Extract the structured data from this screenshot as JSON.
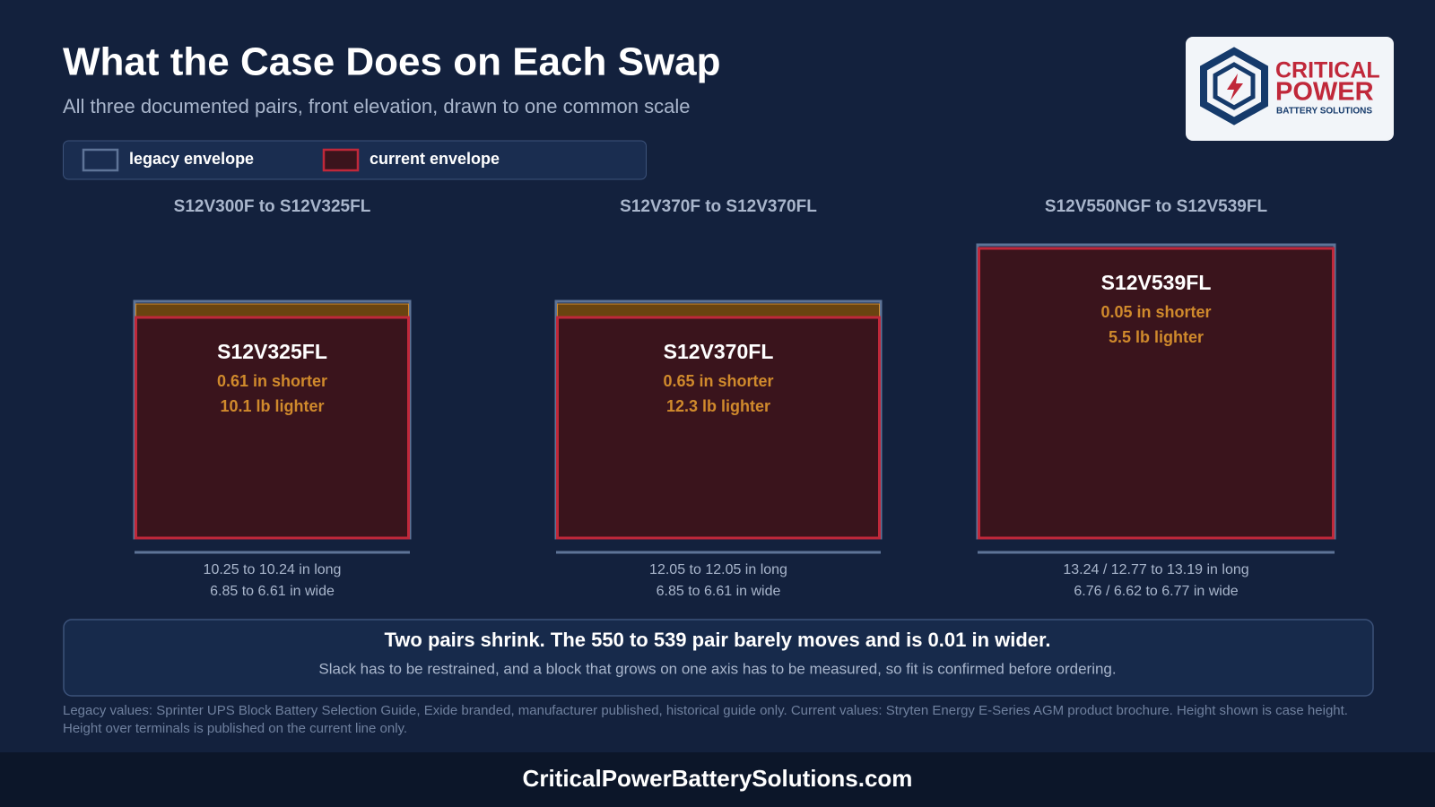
{
  "header": {
    "title": "What the Case Does on Each Swap",
    "subtitle": "All three documented pairs, front elevation, drawn to one common scale"
  },
  "legend": [
    {
      "label": "legacy envelope"
    },
    {
      "label": "current envelope"
    }
  ],
  "logo": {
    "line1": "CRITICAL",
    "line2": "POWER",
    "line3": "BATTERY SOLUTIONS"
  },
  "pairs": [
    {
      "heading": "S12V300F  to  S12V325FL",
      "model": "S12V325FL",
      "height_change": "0.61 in shorter",
      "weight_change": "10.1 lb lighter",
      "length": "10.25 to 10.24 in long",
      "width": "6.85 to 6.61 in wide"
    },
    {
      "heading": "S12V370F  to  S12V370FL",
      "model": "S12V370FL",
      "height_change": "0.65 in shorter",
      "weight_change": "12.3 lb lighter",
      "length": "12.05 to 12.05 in long",
      "width": "6.85 to 6.61 in wide"
    },
    {
      "heading": "S12V550NGF  to  S12V539FL",
      "model": "S12V539FL",
      "height_change": "0.05 in shorter",
      "weight_change": "5.5 lb lighter",
      "length": "13.24 / 12.77 to 13.19 in long",
      "width": "6.76 / 6.62 to 6.77 in wide"
    }
  ],
  "summary": {
    "headline": "Two pairs shrink. The 550 to 539 pair barely moves and is 0.01 in wider.",
    "detail": "Slack has to be restrained, and a block that grows on one axis has to be measured, so fit is confirmed before ordering."
  },
  "footnote": "Legacy values: Sprinter UPS Block Battery Selection Guide, Exide branded, manufacturer published, historical guide only. Current values: Stryten Energy E-Series AGM product brochure. Height shown is case height. Height over terminals is published on the current line only.",
  "footer": "CriticalPowerBatterySolutions.com"
}
